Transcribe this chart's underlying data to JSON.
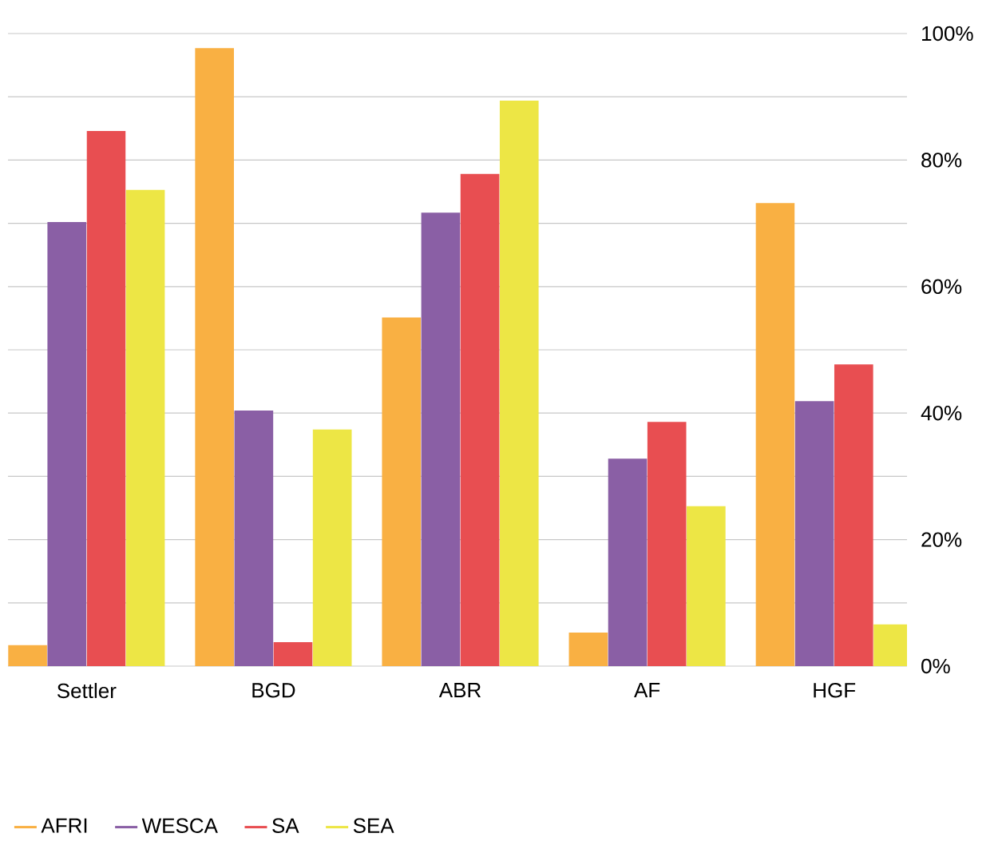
{
  "chart_data": {
    "type": "bar",
    "categories": [
      "Settler",
      "BGD",
      "ABR",
      "AF",
      "HGF"
    ],
    "series": [
      {
        "name": "AFRI",
        "color": "#f9b043",
        "values": [
          3.3,
          97.7,
          55.1,
          5.3,
          73.2
        ]
      },
      {
        "name": "WESCA",
        "color": "#8a5fa5",
        "values": [
          70.2,
          40.4,
          71.7,
          32.8,
          41.9
        ]
      },
      {
        "name": "SA",
        "color": "#e84e51",
        "values": [
          84.6,
          3.8,
          77.8,
          38.6,
          47.7
        ]
      },
      {
        "name": "SEA",
        "color": "#ede645",
        "values": [
          75.3,
          37.4,
          89.4,
          25.3,
          6.6
        ]
      }
    ],
    "ylim": [
      0,
      100
    ],
    "yticks": [
      {
        "value": 0,
        "label": "0%"
      },
      {
        "value": 10,
        "label": null
      },
      {
        "value": 20,
        "label": "20%"
      },
      {
        "value": 30,
        "label": null
      },
      {
        "value": 40,
        "label": "40%"
      },
      {
        "value": 50,
        "label": null
      },
      {
        "value": 60,
        "label": "60%"
      },
      {
        "value": 70,
        "label": null
      },
      {
        "value": 80,
        "label": "80%"
      },
      {
        "value": 90,
        "label": null
      },
      {
        "value": 100,
        "label": "100%"
      }
    ],
    "grid": "y",
    "legend": "bottom"
  }
}
